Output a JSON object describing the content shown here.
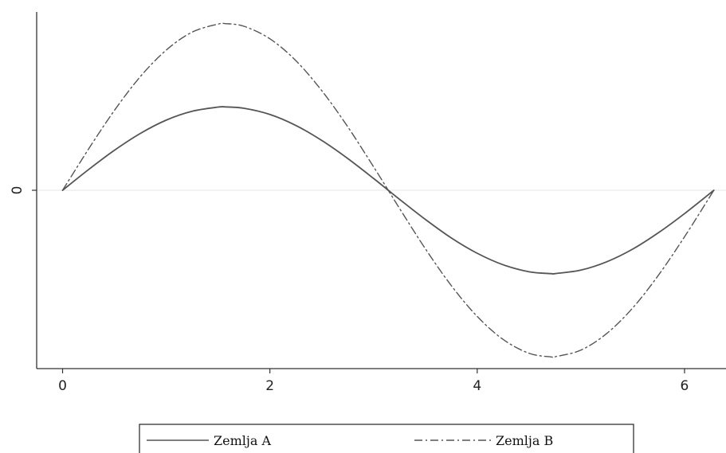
{
  "chart_data": {
    "type": "line",
    "title": "",
    "xlabel": "",
    "ylabel": "",
    "xlim": [
      -0.25,
      6.4
    ],
    "ylim": [
      -1.07,
      1.07
    ],
    "x_ticks": [
      0,
      2,
      4,
      6
    ],
    "x_tick_labels": [
      "0",
      "2",
      "4",
      "6"
    ],
    "y_ticks": [
      0
    ],
    "y_tick_labels": [
      "0"
    ],
    "grid": "horizontal line at y = 0",
    "legend_position": "bottom",
    "series": [
      {
        "name": "Zemlja A",
        "line_style": "solid",
        "color": "#555555",
        "x": [
          0.0,
          0.25,
          0.5,
          0.75,
          1.0,
          1.25,
          1.5,
          1.571,
          1.75,
          2.0,
          2.25,
          2.5,
          2.75,
          3.0,
          3.142,
          3.25,
          3.5,
          3.75,
          4.0,
          4.25,
          4.5,
          4.712,
          4.75,
          5.0,
          5.25,
          5.5,
          5.75,
          6.0,
          6.283
        ],
        "y": [
          0.0,
          0.124,
          0.24,
          0.341,
          0.421,
          0.474,
          0.499,
          0.5,
          0.492,
          0.455,
          0.389,
          0.299,
          0.191,
          0.071,
          0.0,
          -0.054,
          -0.175,
          -0.286,
          -0.378,
          -0.447,
          -0.489,
          -0.5,
          -0.5,
          -0.479,
          -0.429,
          -0.353,
          -0.254,
          -0.14,
          0.0
        ]
      },
      {
        "name": "Zemlja B",
        "line_style": "dash-dot",
        "color": "#555555",
        "x": [
          0.0,
          0.25,
          0.5,
          0.75,
          1.0,
          1.25,
          1.5,
          1.571,
          1.75,
          2.0,
          2.25,
          2.5,
          2.75,
          3.0,
          3.142,
          3.25,
          3.5,
          3.75,
          4.0,
          4.25,
          4.5,
          4.712,
          4.75,
          5.0,
          5.25,
          5.5,
          5.75,
          6.0,
          6.283
        ],
        "y": [
          0.0,
          0.247,
          0.479,
          0.682,
          0.841,
          0.949,
          0.997,
          1.0,
          0.984,
          0.909,
          0.778,
          0.598,
          0.382,
          0.141,
          0.0,
          -0.108,
          -0.351,
          -0.572,
          -0.757,
          -0.895,
          -0.978,
          -1.0,
          -0.999,
          -0.959,
          -0.859,
          -0.706,
          -0.508,
          -0.279,
          0.0
        ]
      }
    ]
  }
}
